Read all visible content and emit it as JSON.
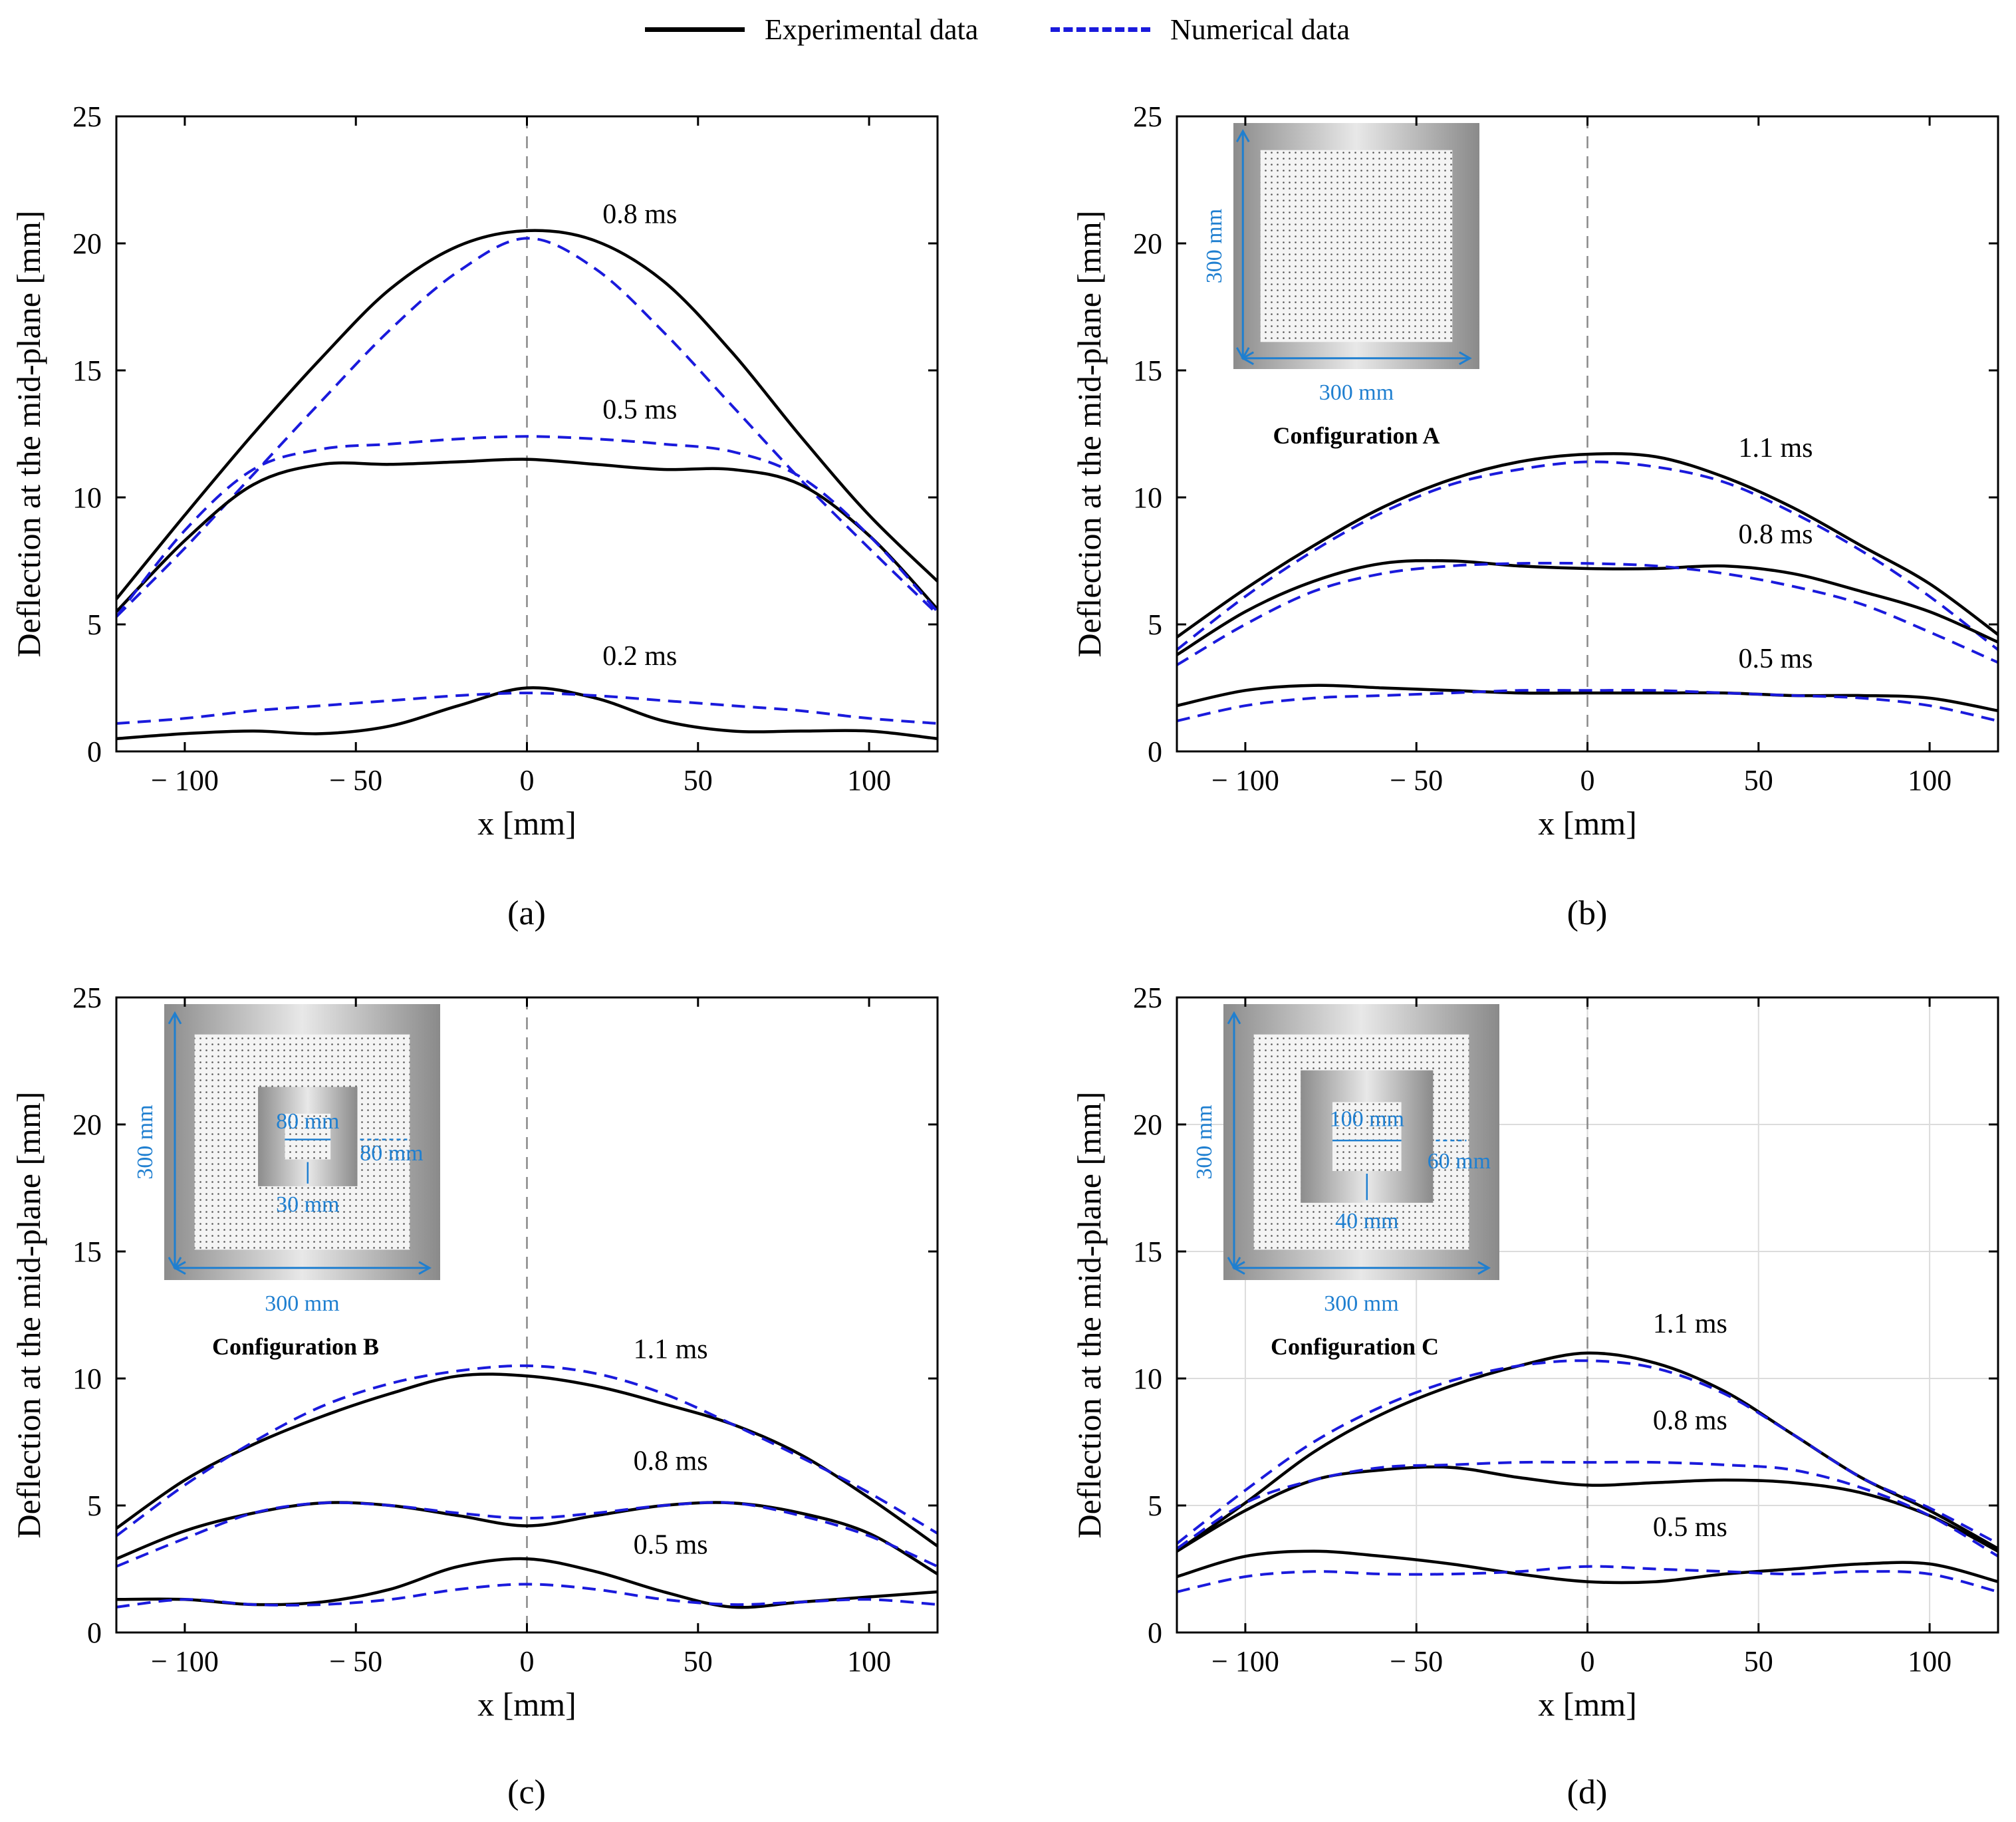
{
  "legend": {
    "experimental_label": "Experimental data",
    "numerical_label": "Numerical data",
    "experimental_color": "#000000",
    "numerical_color": "#1a1adc"
  },
  "chart_data": [
    {
      "id": "a",
      "panel_label": "(a)",
      "type": "line",
      "xlabel": "x [mm]",
      "ylabel": "Deflection at the mid-plane [mm]",
      "xlim": [
        -120,
        120
      ],
      "ylim": [
        0,
        25
      ],
      "xticks": [
        -100,
        -50,
        0,
        50,
        100
      ],
      "yticks": [
        0,
        5,
        10,
        15,
        20,
        25
      ],
      "grid": false,
      "series": [
        {
          "name": "Experimental 0.8 ms",
          "kind": "experimental",
          "label": "0.8 ms",
          "x": [
            -120,
            -100,
            -80,
            -60,
            -40,
            -20,
            0,
            20,
            40,
            60,
            80,
            100,
            120
          ],
          "y": [
            6.0,
            9.3,
            12.5,
            15.5,
            18.2,
            19.9,
            20.5,
            20.1,
            18.5,
            15.7,
            12.4,
            9.3,
            6.7
          ]
        },
        {
          "name": "Numerical 0.8 ms",
          "kind": "numerical",
          "x": [
            -120,
            -100,
            -80,
            -60,
            -40,
            -20,
            0,
            20,
            40,
            60,
            80,
            100,
            120
          ],
          "y": [
            5.3,
            8.0,
            10.9,
            13.8,
            16.6,
            18.9,
            20.2,
            19.0,
            16.5,
            13.6,
            10.7,
            8.0,
            5.4
          ]
        },
        {
          "name": "Experimental 0.5 ms",
          "kind": "experimental",
          "label": "0.5 ms",
          "x": [
            -120,
            -100,
            -80,
            -60,
            -40,
            -20,
            0,
            20,
            40,
            60,
            80,
            100,
            120
          ],
          "y": [
            5.5,
            8.3,
            10.5,
            11.3,
            11.3,
            11.4,
            11.5,
            11.3,
            11.1,
            11.1,
            10.5,
            8.5,
            5.6
          ]
        },
        {
          "name": "Numerical 0.5 ms",
          "kind": "numerical",
          "x": [
            -120,
            -100,
            -80,
            -60,
            -40,
            -20,
            0,
            20,
            40,
            60,
            80,
            100,
            120
          ],
          "y": [
            5.3,
            8.7,
            11.1,
            11.9,
            12.1,
            12.3,
            12.4,
            12.3,
            12.1,
            11.8,
            10.8,
            8.5,
            5.5
          ]
        },
        {
          "name": "Experimental 0.2 ms",
          "kind": "experimental",
          "label": "0.2 ms",
          "x": [
            -120,
            -100,
            -80,
            -60,
            -40,
            -20,
            0,
            20,
            40,
            60,
            80,
            100,
            120
          ],
          "y": [
            0.5,
            0.7,
            0.8,
            0.7,
            1.0,
            1.8,
            2.5,
            2.1,
            1.2,
            0.8,
            0.8,
            0.8,
            0.5
          ]
        },
        {
          "name": "Numerical 0.2 ms",
          "kind": "numerical",
          "x": [
            -120,
            -100,
            -80,
            -60,
            -40,
            -20,
            0,
            20,
            40,
            60,
            80,
            100,
            120
          ],
          "y": [
            1.1,
            1.3,
            1.6,
            1.8,
            2.0,
            2.2,
            2.3,
            2.2,
            2.0,
            1.8,
            1.6,
            1.3,
            1.1
          ]
        }
      ],
      "annotations": [
        {
          "text": "0.8 ms",
          "x": 33,
          "y": 20.8
        },
        {
          "text": "0.5 ms",
          "x": 33,
          "y": 13.1
        },
        {
          "text": "0.2 ms",
          "x": 33,
          "y": 3.4
        }
      ]
    },
    {
      "id": "b",
      "panel_label": "(b)",
      "type": "line",
      "xlabel": "x [mm]",
      "ylabel": "Deflection at the mid-plane [mm]",
      "xlim": [
        -120,
        120
      ],
      "ylim": [
        0,
        25
      ],
      "xticks": [
        -100,
        -50,
        0,
        50,
        100
      ],
      "yticks": [
        0,
        5,
        10,
        15,
        20,
        25
      ],
      "grid": false,
      "inset": {
        "title": "Configuration A",
        "width_label": "300 mm",
        "height_label": "300 mm"
      },
      "series": [
        {
          "name": "Experimental 1.1 ms",
          "kind": "experimental",
          "label": "1.1 ms",
          "x": [
            -120,
            -100,
            -80,
            -60,
            -40,
            -20,
            0,
            20,
            40,
            60,
            80,
            100,
            120
          ],
          "y": [
            4.5,
            6.4,
            8.1,
            9.6,
            10.7,
            11.4,
            11.7,
            11.6,
            10.8,
            9.6,
            8.1,
            6.6,
            4.6
          ]
        },
        {
          "name": "Numerical 1.1 ms",
          "kind": "numerical",
          "x": [
            -120,
            -100,
            -80,
            -60,
            -40,
            -20,
            0,
            20,
            40,
            60,
            80,
            100,
            120
          ],
          "y": [
            4.0,
            6.1,
            7.9,
            9.4,
            10.5,
            11.1,
            11.4,
            11.2,
            10.6,
            9.4,
            7.9,
            6.1,
            4.0
          ]
        },
        {
          "name": "Experimental 0.8 ms",
          "kind": "experimental",
          "label": "0.8 ms",
          "x": [
            -120,
            -100,
            -80,
            -60,
            -40,
            -20,
            0,
            20,
            40,
            60,
            80,
            100,
            120
          ],
          "y": [
            3.8,
            5.5,
            6.7,
            7.4,
            7.5,
            7.3,
            7.2,
            7.2,
            7.3,
            7.0,
            6.3,
            5.5,
            4.3
          ]
        },
        {
          "name": "Numerical 0.8 ms",
          "kind": "numerical",
          "x": [
            -120,
            -100,
            -80,
            -60,
            -40,
            -20,
            0,
            20,
            40,
            60,
            80,
            100,
            120
          ],
          "y": [
            3.4,
            5.0,
            6.3,
            7.0,
            7.3,
            7.4,
            7.4,
            7.3,
            7.0,
            6.5,
            5.8,
            4.7,
            3.5
          ]
        },
        {
          "name": "Experimental 0.5 ms",
          "kind": "experimental",
          "label": "0.5 ms",
          "x": [
            -120,
            -100,
            -80,
            -60,
            -40,
            -20,
            0,
            20,
            40,
            60,
            80,
            100,
            120
          ],
          "y": [
            1.8,
            2.4,
            2.6,
            2.5,
            2.4,
            2.3,
            2.3,
            2.3,
            2.3,
            2.2,
            2.2,
            2.1,
            1.6
          ]
        },
        {
          "name": "Numerical 0.5 ms",
          "kind": "numerical",
          "x": [
            -120,
            -100,
            -80,
            -60,
            -40,
            -20,
            0,
            20,
            40,
            60,
            80,
            100,
            120
          ],
          "y": [
            1.2,
            1.8,
            2.1,
            2.2,
            2.3,
            2.4,
            2.4,
            2.4,
            2.3,
            2.2,
            2.1,
            1.8,
            1.2
          ]
        }
      ],
      "annotations": [
        {
          "text": "1.1 ms",
          "x": 55,
          "y": 11.6
        },
        {
          "text": "0.8 ms",
          "x": 55,
          "y": 8.2
        },
        {
          "text": "0.5 ms",
          "x": 55,
          "y": 3.3
        }
      ]
    },
    {
      "id": "c",
      "panel_label": "(c)",
      "type": "line",
      "xlabel": "x [mm]",
      "ylabel": "Deflection at the mid-plane [mm]",
      "xlim": [
        -120,
        120
      ],
      "ylim": [
        0,
        25
      ],
      "xticks": [
        -100,
        -50,
        0,
        50,
        100
      ],
      "yticks": [
        0,
        5,
        10,
        15,
        20,
        25
      ],
      "grid": false,
      "inset": {
        "title": "Configuration B",
        "width_label": "300 mm",
        "height_label": "300 mm",
        "hole_label": "80 mm",
        "side_label": "80 mm",
        "bottom_label": "30 mm"
      },
      "series": [
        {
          "name": "Experimental 1.1 ms",
          "kind": "experimental",
          "label": "1.1 ms",
          "x": [
            -120,
            -100,
            -80,
            -60,
            -40,
            -20,
            0,
            20,
            40,
            60,
            80,
            100,
            120
          ],
          "y": [
            4.1,
            6.0,
            7.4,
            8.5,
            9.4,
            10.1,
            10.1,
            9.7,
            9.0,
            8.2,
            7.0,
            5.3,
            3.4
          ]
        },
        {
          "name": "Numerical 1.1 ms",
          "kind": "numerical",
          "x": [
            -120,
            -100,
            -80,
            -60,
            -40,
            -20,
            0,
            20,
            40,
            60,
            80,
            100,
            120
          ],
          "y": [
            3.8,
            5.8,
            7.5,
            8.9,
            9.8,
            10.3,
            10.5,
            10.2,
            9.4,
            8.2,
            6.9,
            5.5,
            3.9
          ]
        },
        {
          "name": "Experimental 0.8 ms",
          "kind": "experimental",
          "label": "0.8 ms",
          "x": [
            -120,
            -100,
            -80,
            -60,
            -40,
            -20,
            0,
            20,
            40,
            60,
            80,
            100,
            120
          ],
          "y": [
            2.9,
            4.0,
            4.7,
            5.1,
            5.0,
            4.6,
            4.2,
            4.6,
            5.0,
            5.1,
            4.7,
            3.9,
            2.3
          ]
        },
        {
          "name": "Numerical 0.8 ms",
          "kind": "numerical",
          "x": [
            -120,
            -100,
            -80,
            -60,
            -40,
            -20,
            0,
            20,
            40,
            60,
            80,
            100,
            120
          ],
          "y": [
            2.6,
            3.7,
            4.7,
            5.1,
            5.0,
            4.7,
            4.5,
            4.7,
            5.0,
            5.1,
            4.6,
            3.8,
            2.6
          ]
        },
        {
          "name": "Experimental 0.5 ms",
          "kind": "experimental",
          "label": "0.5 ms",
          "x": [
            -120,
            -100,
            -80,
            -60,
            -40,
            -20,
            0,
            20,
            40,
            60,
            80,
            100,
            120
          ],
          "y": [
            1.3,
            1.3,
            1.1,
            1.2,
            1.7,
            2.6,
            2.9,
            2.4,
            1.6,
            1.0,
            1.2,
            1.4,
            1.6
          ]
        },
        {
          "name": "Numerical 0.5 ms",
          "kind": "numerical",
          "x": [
            -120,
            -100,
            -80,
            -60,
            -40,
            -20,
            0,
            20,
            40,
            60,
            80,
            100,
            120
          ],
          "y": [
            1.0,
            1.3,
            1.1,
            1.1,
            1.3,
            1.7,
            1.9,
            1.7,
            1.3,
            1.1,
            1.2,
            1.3,
            1.1
          ]
        }
      ],
      "annotations": [
        {
          "text": "1.1 ms",
          "x": 42,
          "y": 10.8
        },
        {
          "text": "0.8 ms",
          "x": 42,
          "y": 6.4
        },
        {
          "text": "0.5 ms",
          "x": 42,
          "y": 3.1
        }
      ]
    },
    {
      "id": "d",
      "panel_label": "(d)",
      "type": "line",
      "xlabel": "x [mm]",
      "ylabel": "Deflection at the mid-plane [mm]",
      "xlim": [
        -120,
        120
      ],
      "ylim": [
        0,
        25
      ],
      "xticks": [
        -100,
        -50,
        0,
        50,
        100
      ],
      "yticks": [
        0,
        5,
        10,
        15,
        20,
        25
      ],
      "grid": true,
      "inset": {
        "title": "Configuration C",
        "width_label": "300 mm",
        "height_label": "300 mm",
        "hole_label": "100 mm",
        "side_label": "60 mm",
        "bottom_label": "40 mm"
      },
      "series": [
        {
          "name": "Experimental 1.1 ms",
          "kind": "experimental",
          "label": "1.1 ms",
          "x": [
            -120,
            -100,
            -80,
            -60,
            -40,
            -20,
            0,
            20,
            40,
            60,
            80,
            100,
            120
          ],
          "y": [
            3.2,
            5.1,
            7.1,
            8.6,
            9.7,
            10.5,
            11.0,
            10.6,
            9.5,
            7.8,
            6.1,
            4.8,
            3.3
          ]
        },
        {
          "name": "Numerical 1.1 ms",
          "kind": "numerical",
          "x": [
            -120,
            -100,
            -80,
            -60,
            -40,
            -20,
            0,
            20,
            40,
            60,
            80,
            100,
            120
          ],
          "y": [
            3.5,
            5.6,
            7.5,
            8.9,
            9.9,
            10.5,
            10.7,
            10.4,
            9.4,
            7.8,
            6.1,
            4.9,
            3.5
          ]
        },
        {
          "name": "Experimental 0.8 ms",
          "kind": "experimental",
          "label": "0.8 ms",
          "x": [
            -120,
            -100,
            -80,
            -60,
            -40,
            -20,
            0,
            20,
            40,
            60,
            80,
            100,
            120
          ],
          "y": [
            3.2,
            4.8,
            6.0,
            6.4,
            6.5,
            6.1,
            5.8,
            5.9,
            6.0,
            5.9,
            5.5,
            4.6,
            3.2
          ]
        },
        {
          "name": "Numerical 0.8 ms",
          "kind": "numerical",
          "x": [
            -120,
            -100,
            -80,
            -60,
            -40,
            -20,
            0,
            20,
            40,
            60,
            80,
            100,
            120
          ],
          "y": [
            3.3,
            5.1,
            6.0,
            6.5,
            6.6,
            6.7,
            6.7,
            6.7,
            6.6,
            6.4,
            5.7,
            4.6,
            3.0
          ]
        },
        {
          "name": "Experimental 0.5 ms",
          "kind": "experimental",
          "label": "0.5 ms",
          "x": [
            -120,
            -100,
            -80,
            -60,
            -40,
            -20,
            0,
            20,
            40,
            60,
            80,
            100,
            120
          ],
          "y": [
            2.2,
            3.0,
            3.2,
            3.0,
            2.7,
            2.3,
            2.0,
            2.0,
            2.3,
            2.5,
            2.7,
            2.7,
            2.0
          ]
        },
        {
          "name": "Numerical 0.5 ms",
          "kind": "numerical",
          "x": [
            -120,
            -100,
            -80,
            -60,
            -40,
            -20,
            0,
            20,
            40,
            60,
            80,
            100,
            120
          ],
          "y": [
            1.6,
            2.2,
            2.4,
            2.3,
            2.3,
            2.4,
            2.6,
            2.5,
            2.4,
            2.3,
            2.4,
            2.3,
            1.6
          ]
        }
      ],
      "annotations": [
        {
          "text": "1.1 ms",
          "x": 30,
          "y": 11.8
        },
        {
          "text": "0.8 ms",
          "x": 30,
          "y": 8.0
        },
        {
          "text": "0.5 ms",
          "x": 30,
          "y": 3.8
        }
      ]
    }
  ]
}
